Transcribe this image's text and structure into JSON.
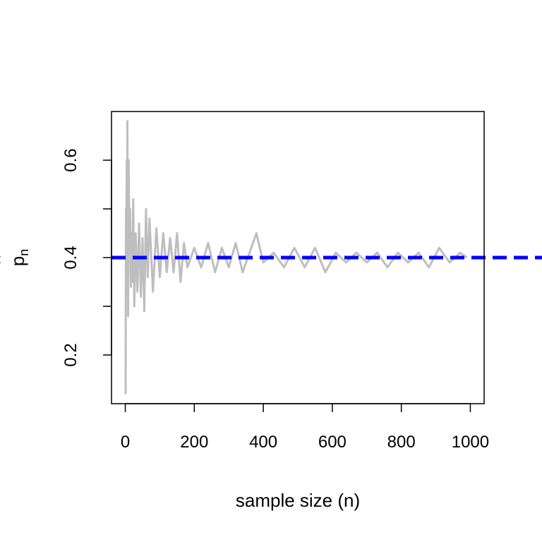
{
  "chart_data": {
    "type": "line",
    "title": "",
    "xlabel": "sample size (n)",
    "ylabel": {
      "base": "p",
      "subscript": "n",
      "accent": "hat"
    },
    "xlim": [
      -40,
      1040
    ],
    "ylim": [
      0.1,
      0.7
    ],
    "x_ticks": [
      0,
      200,
      400,
      600,
      800,
      1000
    ],
    "x_tick_labels": [
      "0",
      "200",
      "400",
      "600",
      "800",
      "1000"
    ],
    "y_ticks": [
      0.2,
      0.3,
      0.4,
      0.5,
      0.6
    ],
    "y_tick_labels": [
      "0.2",
      "",
      "0.4",
      "",
      "0.6"
    ],
    "grid": false,
    "series": [
      {
        "kind": "running-proportion",
        "color": "#bebebe",
        "x": [
          1,
          2,
          3,
          4,
          5,
          6,
          8,
          10,
          12,
          14,
          16,
          18,
          20,
          23,
          26,
          30,
          35,
          40,
          45,
          50,
          55,
          60,
          65,
          70,
          80,
          90,
          100,
          110,
          120,
          130,
          140,
          150,
          160,
          170,
          180,
          200,
          220,
          240,
          260,
          280,
          300,
          320,
          340,
          360,
          380,
          400,
          430,
          460,
          490,
          520,
          550,
          580,
          610,
          640,
          670,
          700,
          730,
          760,
          790,
          820,
          850,
          880,
          910,
          940,
          970,
          990
        ],
        "values": [
          0.12,
          0.5,
          0.33,
          0.6,
          0.32,
          0.68,
          0.28,
          0.6,
          0.42,
          0.5,
          0.34,
          0.45,
          0.35,
          0.52,
          0.3,
          0.45,
          0.33,
          0.47,
          0.32,
          0.44,
          0.29,
          0.5,
          0.36,
          0.48,
          0.33,
          0.46,
          0.36,
          0.45,
          0.37,
          0.44,
          0.37,
          0.45,
          0.35,
          0.43,
          0.38,
          0.42,
          0.38,
          0.43,
          0.37,
          0.42,
          0.38,
          0.43,
          0.37,
          0.41,
          0.45,
          0.39,
          0.41,
          0.38,
          0.42,
          0.38,
          0.42,
          0.37,
          0.41,
          0.39,
          0.41,
          0.39,
          0.41,
          0.38,
          0.41,
          0.39,
          0.41,
          0.38,
          0.42,
          0.39,
          0.41,
          0.4
        ]
      },
      {
        "kind": "reference-line",
        "color": "#0000ff",
        "dashed": true,
        "y": 0.4
      }
    ]
  }
}
